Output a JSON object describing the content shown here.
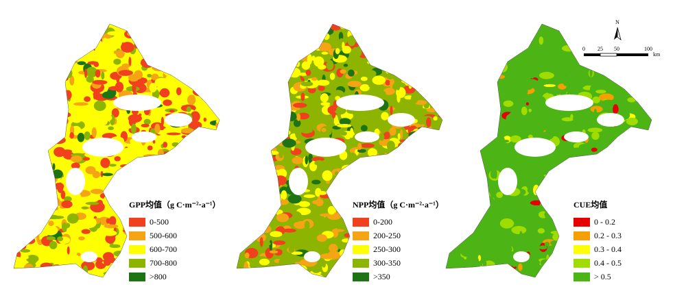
{
  "maps": [
    {
      "legend": {
        "title": "GPP均值（g C·m⁻²·a⁻¹）",
        "items": [
          {
            "label": "0-500",
            "color": "#f0401e"
          },
          {
            "label": "500-600",
            "color": "#f5a514"
          },
          {
            "label": "600-700",
            "color": "#ffff00"
          },
          {
            "label": "700-800",
            "color": "#8cb400"
          },
          {
            "label": ">800",
            "color": "#1e7314"
          }
        ]
      }
    },
    {
      "legend": {
        "title": "NPP均值（g C·m⁻²·a⁻¹）",
        "items": [
          {
            "label": "0-200",
            "color": "#f0401e"
          },
          {
            "label": "200-250",
            "color": "#f5a514"
          },
          {
            "label": "250-300",
            "color": "#ffff00"
          },
          {
            "label": "300-350",
            "color": "#8cb400"
          },
          {
            "label": ">350",
            "color": "#1e7314"
          }
        ]
      }
    },
    {
      "legend": {
        "title": "CUE均值",
        "items": [
          {
            "label": "0 - 0.2",
            "color": "#e60000"
          },
          {
            "label": "0.2 - 0.3",
            "color": "#f5a000"
          },
          {
            "label": "0.3 - 0.4",
            "color": "#ffff00"
          },
          {
            "label": "0.4 - 0.5",
            "color": "#a0dc00"
          },
          {
            "label": "> 0.5",
            "color": "#4cb414"
          }
        ]
      }
    }
  ],
  "scale_bar": {
    "labels": [
      "0",
      "25",
      "50",
      "100"
    ],
    "unit": "km"
  },
  "north_arrow": "N"
}
